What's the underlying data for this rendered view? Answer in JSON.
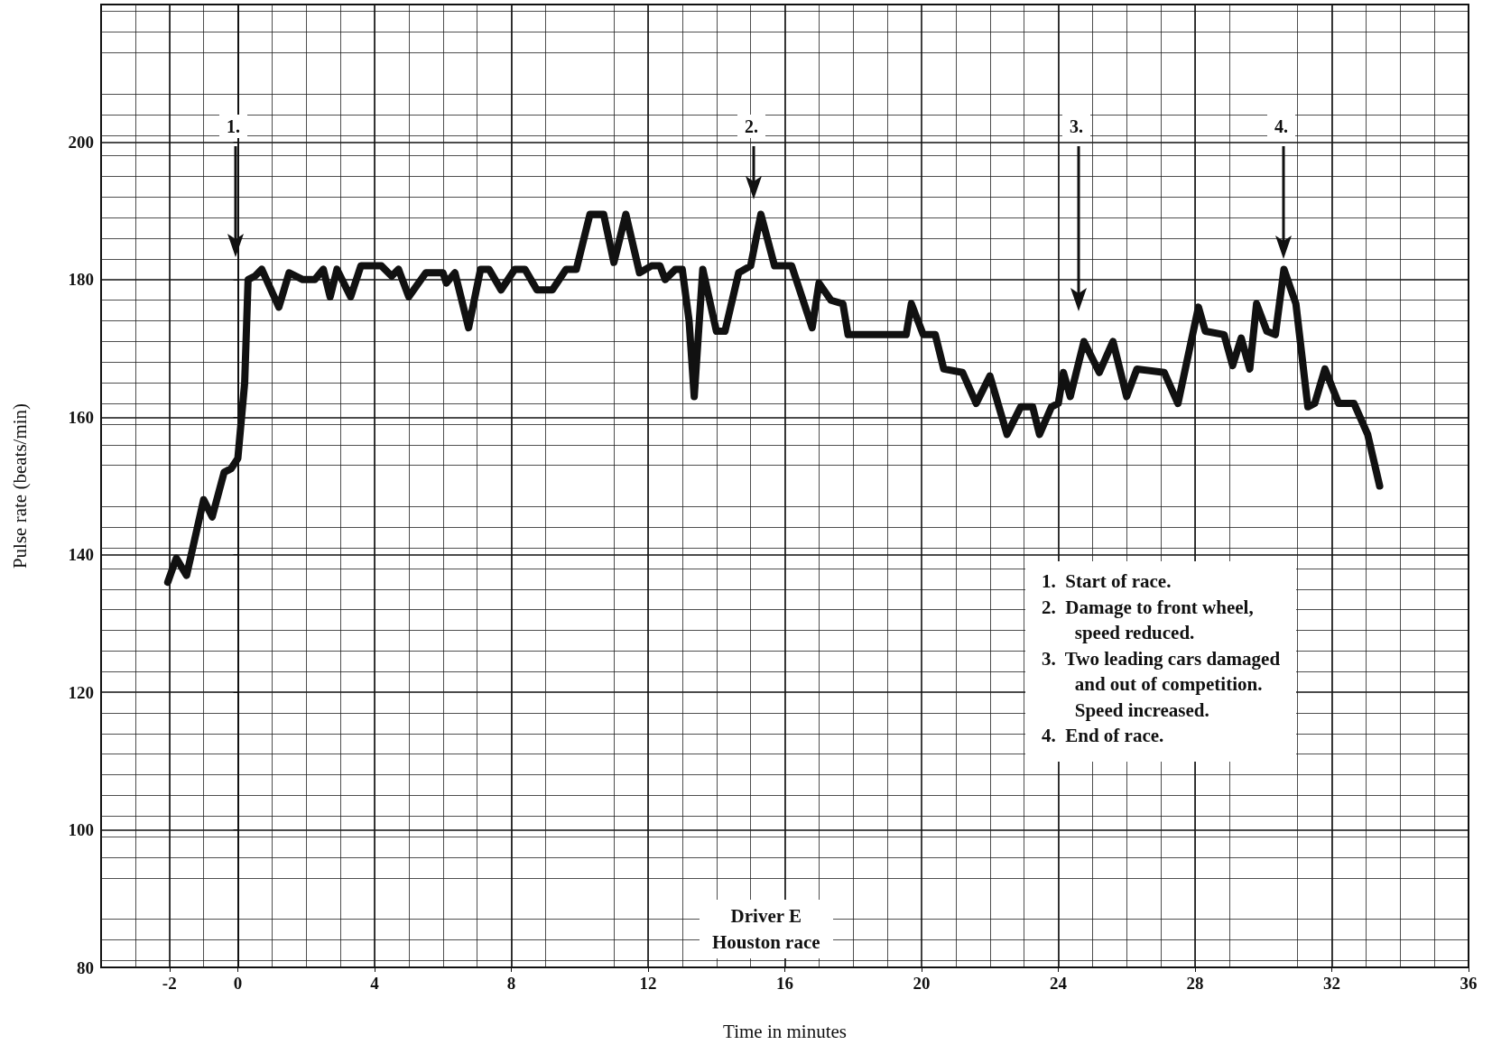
{
  "chart_data": {
    "type": "line",
    "xlabel": "Time in minutes",
    "ylabel": "Pulse rate (beats/min)",
    "xlim": [
      -4,
      36
    ],
    "xticks": [
      -2,
      0,
      4,
      8,
      12,
      16,
      20,
      24,
      28,
      32,
      36
    ],
    "ylim": [
      80,
      220
    ],
    "yticks": [
      80,
      100,
      120,
      140,
      160,
      180,
      200
    ],
    "grid": true,
    "line_style": "solid",
    "series": [
      {
        "color": "#111111",
        "x": [
          -2.05,
          -1.8,
          -1.5,
          -1,
          -0.75,
          -0.4,
          -0.2,
          0,
          0.2,
          0.3,
          0.5,
          0.7,
          1.2,
          1.5,
          1.9,
          2.25,
          2.5,
          2.7,
          2.9,
          3.3,
          3.6,
          4.2,
          4.5,
          4.7,
          5,
          5.5,
          6,
          6.1,
          6.35,
          6.75,
          7.1,
          7.35,
          7.7,
          8.1,
          8.4,
          8.75,
          9.2,
          9.6,
          9.9,
          10.3,
          10.7,
          11,
          11.35,
          11.75,
          12.1,
          12.35,
          12.5,
          12.8,
          13,
          13.2,
          13.35,
          13.6,
          14,
          14.25,
          14.65,
          15,
          15.3,
          15.7,
          16.2,
          16.8,
          17,
          17.35,
          17.7,
          17.85,
          19.55,
          19.7,
          20.05,
          20.4,
          20.65,
          21.2,
          21.6,
          22,
          22.5,
          22.9,
          23.25,
          23.45,
          23.8,
          24,
          24.15,
          24.35,
          24.75,
          25.2,
          25.6,
          26,
          26.3,
          27.1,
          27.5,
          28.1,
          28.3,
          28.85,
          29.1,
          29.35,
          29.6,
          29.8,
          30.1,
          30.35,
          30.6,
          30.95,
          31.3,
          31.5,
          31.8,
          32.2,
          32.65,
          33.05,
          33.4
        ],
        "values": [
          136,
          139.5,
          137,
          148,
          145.5,
          152,
          152.5,
          154,
          165,
          180,
          180.5,
          181.5,
          176,
          181,
          180,
          180,
          181.5,
          177.5,
          181.5,
          177.5,
          182,
          182,
          180.5,
          181.5,
          177.5,
          181,
          181,
          179.5,
          181,
          173,
          181.5,
          181.5,
          178.5,
          181.5,
          181.5,
          178.5,
          178.5,
          181.5,
          181.5,
          189.5,
          189.5,
          182.5,
          189.5,
          181,
          182,
          182,
          180,
          181.5,
          181.5,
          174,
          163,
          181.5,
          172.5,
          172.5,
          181,
          182,
          189.5,
          182,
          182,
          173,
          179.5,
          177,
          176.5,
          172,
          172,
          176.5,
          172,
          172,
          167,
          166.5,
          162,
          166,
          157.5,
          161.5,
          161.5,
          157.5,
          161.5,
          162,
          166.5,
          163,
          171,
          166.5,
          171,
          163,
          167,
          166.5,
          162,
          176,
          172.5,
          172,
          167.5,
          171.5,
          167,
          176.5,
          172.5,
          172,
          181.5,
          176.5,
          161.5,
          162,
          167,
          162,
          162,
          157.5,
          150
        ]
      }
    ],
    "annotations": [
      "1.",
      "2.",
      "3.",
      "4.",
      "1.  Start of race.\n2.  Damage to front wheel,\n       speed reduced.\n3.  Two leading cars damaged\n       and out of competition.\n       Speed increased.\n4.  End of race.",
      "Driver E\nHouston race"
    ]
  }
}
